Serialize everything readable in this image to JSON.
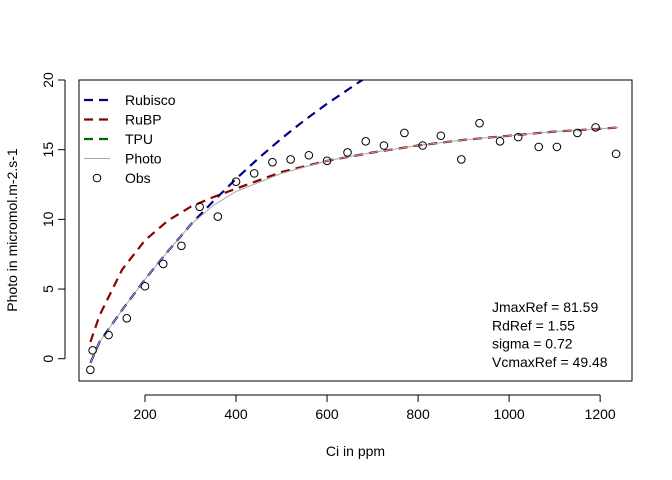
{
  "chart_data": {
    "type": "scatter",
    "xlabel": "Ci in ppm",
    "ylabel": "Photo in micromol.m-2.s-1",
    "xlim": [
      55,
      1270
    ],
    "ylim": [
      -1.6,
      20
    ],
    "x_ticks": [
      200,
      400,
      600,
      800,
      1000,
      1200
    ],
    "y_ticks": [
      0,
      5,
      10,
      15,
      20
    ],
    "legend_position": "top-left",
    "legend": [
      {
        "label": "Rubisco",
        "style": "dashed",
        "color": "#00008B"
      },
      {
        "label": "RuBP",
        "style": "dashed",
        "color": "#8B0000"
      },
      {
        "label": "TPU",
        "style": "dashed",
        "color": "#006400"
      },
      {
        "label": "Photo",
        "style": "solid",
        "color": "#A9A9A9"
      },
      {
        "label": "Obs",
        "style": "open-circle",
        "color": "#000000"
      }
    ],
    "series": [
      {
        "name": "Rubisco",
        "style": "dashed",
        "color": "#00008B",
        "x": [
          80,
          100,
          150,
          200,
          250,
          300,
          350,
          400,
          450,
          500,
          550,
          600,
          650,
          700
        ],
        "y": [
          -0.3,
          1.2,
          3.5,
          5.7,
          7.7,
          9.6,
          11.3,
          12.9,
          14.4,
          15.8,
          17.1,
          18.3,
          19.4,
          20.5
        ]
      },
      {
        "name": "RuBP",
        "style": "dashed",
        "color": "#8B0000",
        "x": [
          80,
          100,
          150,
          200,
          250,
          300,
          350,
          400,
          500,
          600,
          700,
          800,
          900,
          1000,
          1100,
          1200,
          1240
        ],
        "y": [
          1.2,
          3.1,
          6.4,
          8.5,
          9.9,
          10.9,
          11.6,
          12.2,
          13.4,
          14.2,
          14.8,
          15.3,
          15.7,
          16.0,
          16.3,
          16.5,
          16.6
        ]
      },
      {
        "name": "Photo",
        "style": "solid",
        "color": "#A9A9A9",
        "x": [
          80,
          100,
          150,
          200,
          250,
          300,
          350,
          400,
          500,
          600,
          700,
          800,
          900,
          1000,
          1100,
          1200,
          1240
        ],
        "y": [
          -0.3,
          1.2,
          3.5,
          5.7,
          7.7,
          9.6,
          11.0,
          12.0,
          13.3,
          14.2,
          14.8,
          15.3,
          15.7,
          16.0,
          16.3,
          16.5,
          16.6
        ]
      },
      {
        "name": "Obs",
        "style": "points",
        "color": "#000000",
        "x": [
          80,
          85,
          120,
          160,
          200,
          240,
          280,
          320,
          360,
          400,
          440,
          480,
          520,
          560,
          600,
          645,
          685,
          725,
          770,
          810,
          850,
          895,
          935,
          980,
          1020,
          1065,
          1105,
          1150,
          1190,
          1235
        ],
        "y": [
          -0.8,
          0.6,
          1.7,
          2.9,
          5.2,
          6.8,
          8.1,
          10.9,
          10.2,
          12.7,
          13.3,
          14.1,
          14.3,
          14.6,
          14.2,
          14.8,
          15.6,
          15.3,
          16.2,
          15.3,
          16.0,
          14.3,
          16.9,
          15.6,
          15.9,
          15.2,
          15.2,
          16.2,
          16.6,
          14.7
        ]
      }
    ],
    "annotations": [
      "JmaxRef = 81.59",
      "RdRef = 1.55",
      "sigma = 0.72",
      "VcmaxRef = 49.48"
    ]
  }
}
